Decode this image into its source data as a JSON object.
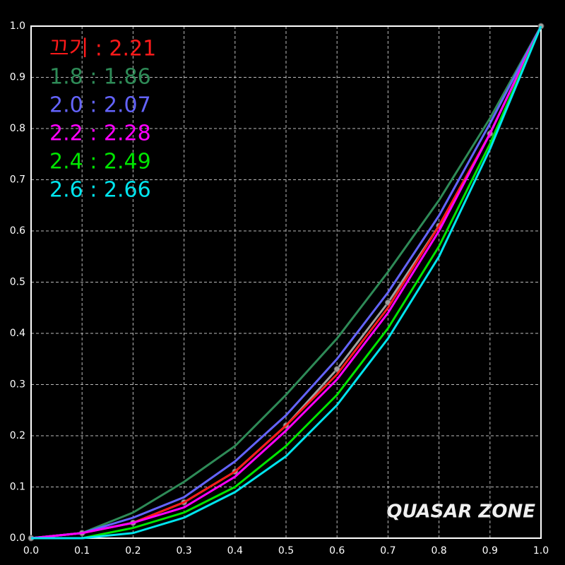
{
  "chart_data": {
    "type": "line",
    "x": [
      0,
      0.1,
      0.2,
      0.3,
      0.4,
      0.5,
      0.6,
      0.7,
      0.8,
      0.9,
      1.0
    ],
    "series": [
      {
        "name": "끄기 : 2.21",
        "color": "#ff1a1a",
        "values": [
          0,
          0.01,
          0.03,
          0.07,
          0.13,
          0.22,
          0.32,
          0.45,
          0.61,
          0.79,
          1.0
        ]
      },
      {
        "name": "1.8 : 1.86",
        "color": "#2e8b57",
        "values": [
          0,
          0.01,
          0.05,
          0.11,
          0.18,
          0.28,
          0.39,
          0.52,
          0.66,
          0.82,
          1.0
        ]
      },
      {
        "name": "2.0 : 2.07",
        "color": "#6464ff",
        "values": [
          0,
          0.01,
          0.04,
          0.08,
          0.15,
          0.24,
          0.35,
          0.48,
          0.63,
          0.81,
          1.0
        ]
      },
      {
        "name": "2.2 : 2.28",
        "color": "#ff00ff",
        "values": [
          0,
          0.01,
          0.03,
          0.06,
          0.12,
          0.21,
          0.31,
          0.44,
          0.6,
          0.79,
          1.0
        ]
      },
      {
        "name": "2.4 : 2.49",
        "color": "#00e600",
        "values": [
          0,
          0.0,
          0.02,
          0.05,
          0.1,
          0.18,
          0.28,
          0.41,
          0.57,
          0.77,
          1.0
        ]
      },
      {
        "name": "2.6 : 2.66",
        "color": "#00e5ee",
        "values": [
          0,
          0.0,
          0.01,
          0.04,
          0.09,
          0.16,
          0.26,
          0.39,
          0.55,
          0.76,
          1.0
        ]
      }
    ],
    "reference": {
      "color": "#a0a0a0",
      "values": [
        0,
        0.01,
        0.03,
        0.07,
        0.13,
        0.22,
        0.33,
        0.46,
        0.61,
        0.79,
        1.0
      ]
    },
    "xlim": [
      0,
      1.0
    ],
    "ylim": [
      0,
      1.0
    ],
    "xticks": [
      {
        "value": 0,
        "label": "0.0"
      },
      0.1,
      0.2,
      0.3,
      0.4,
      0.5,
      0.6,
      0.7,
      0.8,
      0.9,
      {
        "value": 1,
        "label": "1.0"
      }
    ],
    "yticks": [
      {
        "value": 0,
        "label": "0.0"
      },
      0.1,
      0.2,
      0.3,
      0.4,
      0.5,
      0.6,
      0.7,
      0.8,
      0.9,
      {
        "value": 1,
        "label": "1.0"
      }
    ],
    "grid": true,
    "watermark": "QUASAR ZONE"
  }
}
